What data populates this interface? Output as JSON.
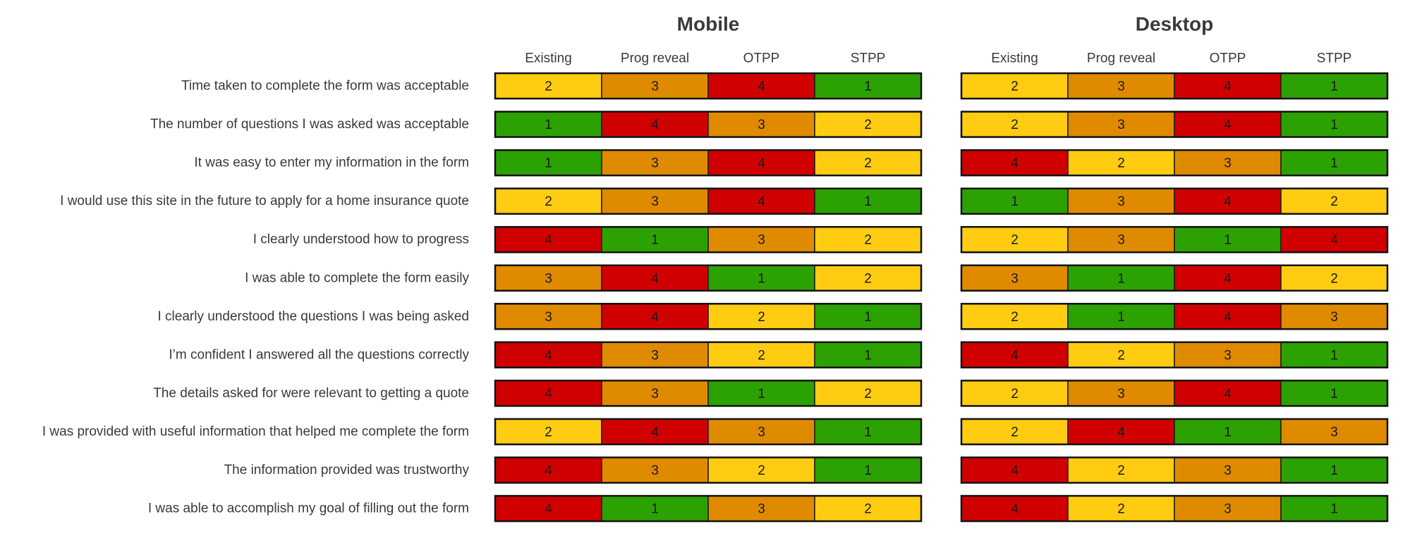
{
  "chart_data": [
    {
      "type": "heatmap",
      "title": "Mobile",
      "columns": [
        "Existing",
        "Prog reveal",
        "OTPP",
        "STPP"
      ],
      "rows": [
        "Time taken to complete the form was acceptable",
        "The number of questions I was asked was acceptable",
        "It was easy to enter my information in the form",
        "I would use this site in the future to apply for a home insurance quote",
        "I clearly understood how to progress",
        "I was able to complete the form easily",
        "I clearly understood the questions I was being asked",
        "I’m confident I answered all the questions correctly",
        "The details asked for were relevant to getting a quote",
        "I was provided with useful information that helped me complete the form",
        "The information provided was trustworthy",
        "I was able to accomplish my goal of filling out the form"
      ],
      "values": [
        [
          2,
          3,
          4,
          1
        ],
        [
          1,
          4,
          3,
          2
        ],
        [
          1,
          3,
          4,
          2
        ],
        [
          2,
          3,
          4,
          1
        ],
        [
          4,
          1,
          3,
          2
        ],
        [
          3,
          4,
          1,
          2
        ],
        [
          3,
          4,
          2,
          1
        ],
        [
          4,
          3,
          2,
          1
        ],
        [
          4,
          3,
          1,
          2
        ],
        [
          2,
          4,
          3,
          1
        ],
        [
          4,
          3,
          2,
          1
        ],
        [
          4,
          1,
          3,
          2
        ]
      ]
    },
    {
      "type": "heatmap",
      "title": "Desktop",
      "columns": [
        "Existing",
        "Prog reveal",
        "OTPP",
        "STPP"
      ],
      "rows": [
        "Time taken to complete the form was acceptable",
        "The number of questions I was asked was acceptable",
        "It was easy to enter my information in the form",
        "I would use this site in the future to apply for a home insurance quote",
        "I clearly understood how to progress",
        "I was able to complete the form easily",
        "I clearly understood the questions I was being asked",
        "I’m confident I answered all the questions correctly",
        "The details asked for were relevant to getting a quote",
        "I was provided with useful information that helped me complete the form",
        "The information provided was trustworthy",
        "I was able to accomplish my goal of filling out the form"
      ],
      "values": [
        [
          2,
          3,
          4,
          1
        ],
        [
          2,
          3,
          4,
          1
        ],
        [
          4,
          2,
          3,
          1
        ],
        [
          1,
          3,
          4,
          2
        ],
        [
          2,
          3,
          1,
          4
        ],
        [
          3,
          1,
          4,
          2
        ],
        [
          2,
          1,
          4,
          3
        ],
        [
          4,
          2,
          3,
          1
        ],
        [
          2,
          3,
          4,
          1
        ],
        [
          2,
          4,
          1,
          3
        ],
        [
          4,
          2,
          3,
          1
        ],
        [
          4,
          2,
          3,
          1
        ]
      ]
    }
  ],
  "rank_colors": {
    "1": "#2ca102",
    "2": "#ffcc12",
    "3": "#e08a00",
    "4": "#d10000"
  }
}
